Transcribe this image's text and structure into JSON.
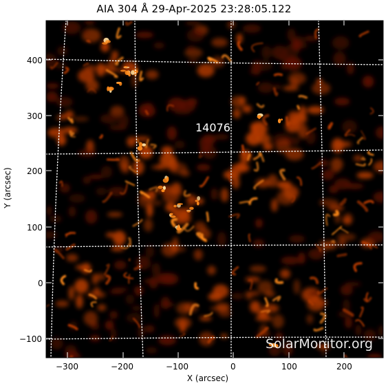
{
  "title": "AIA 304 Å 29-Apr-2025 23:28:05.122",
  "axes": {
    "xlabel": "X (arcsec)",
    "ylabel": "Y (arcsec)",
    "x_ticks": [
      "−300",
      "−200",
      "−100",
      "0",
      "100",
      "200"
    ],
    "y_ticks": [
      "400",
      "300",
      "200",
      "100",
      "0",
      "−100"
    ]
  },
  "active_region": "14076",
  "watermark": "SolarMonitor.org",
  "colors": {
    "background": "#000000",
    "plasma_dim": "#5a0f00",
    "plasma_mid": "#b33a00",
    "plasma_bright": "#ff8a1a",
    "plasma_peak": "#ffe0a0",
    "grid": "#ffffff"
  }
}
